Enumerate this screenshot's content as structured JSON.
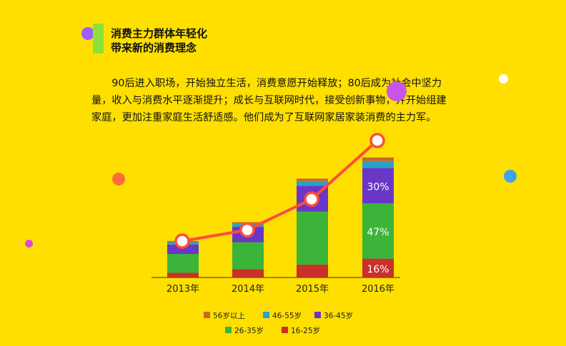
{
  "heading": {
    "line1": "消费主力群体年轻化",
    "line2": "带来新的消费理念"
  },
  "paragraph": "90后进入职场，开始独立生活，消费意愿开始释放；80后成为社会中坚力量，收入与消费水平逐渐提升；成长与互联网时代，接受创新事物，并开始组建家庭，更加注重家庭生活舒适感。他们成为了互联网家居家装消费的主力军。",
  "colors": {
    "background": "#FEDF00",
    "accent_bar": "#8EE03A",
    "line": "#FF4D3A",
    "s56": "#C8692A",
    "s46": "#2E9FC8",
    "s36": "#6A36C8",
    "s26": "#3CB43A",
    "s16": "#C8302A"
  },
  "chart_data": {
    "type": "bar",
    "stacked": true,
    "categories": [
      "2013年",
      "2014年",
      "2015年",
      "2016年"
    ],
    "series": [
      {
        "name": "16-25岁",
        "color": "#C8302A",
        "values": [
          4,
          7,
          11,
          16
        ]
      },
      {
        "name": "26-35岁",
        "color": "#3CB43A",
        "values": [
          16,
          23,
          45,
          47
        ]
      },
      {
        "name": "36-45岁",
        "color": "#6A36C8",
        "values": [
          8,
          13,
          22,
          30
        ]
      },
      {
        "name": "46-55岁",
        "color": "#2E9FC8",
        "values": [
          2,
          3,
          4,
          6
        ]
      },
      {
        "name": "56岁以上",
        "color": "#C8692A",
        "values": [
          1,
          1,
          2,
          3
        ]
      }
    ],
    "data_labels": {
      "2016年": {
        "16-25岁": "16%",
        "26-35岁": "47%",
        "36-45岁": "30%"
      }
    },
    "trend_line": {
      "values": [
        1.0,
        1.4,
        2.5,
        4.6
      ]
    },
    "legend_placement": "bottom",
    "grid": false
  },
  "legend_rows": [
    [
      "56岁以上",
      "46-55岁",
      "36-45岁"
    ],
    [
      "26-35岁",
      "16-25岁"
    ]
  ]
}
